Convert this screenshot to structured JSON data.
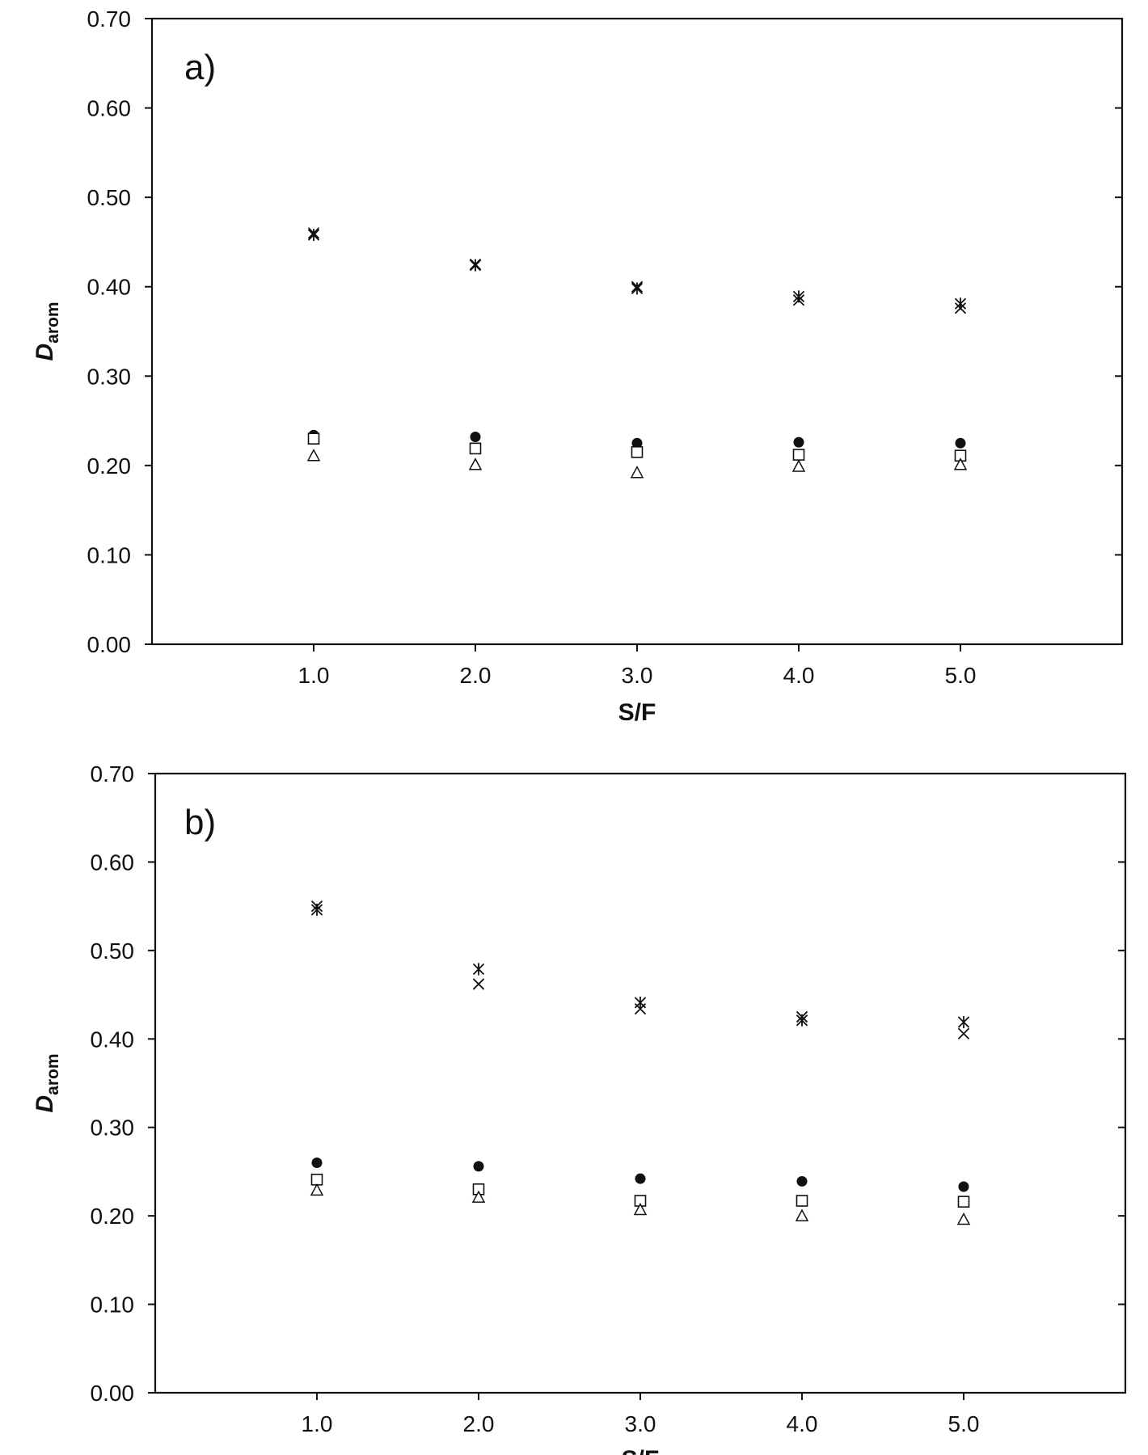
{
  "chart_data": [
    {
      "type": "scatter",
      "panel_label": "a)",
      "title": "",
      "xlabel": "S/F",
      "ylabel": {
        "main": "D",
        "sub": "arom"
      },
      "x": [
        1.0,
        2.0,
        3.0,
        4.0,
        5.0
      ],
      "x_tick_labels": [
        "1.0",
        "2.0",
        "3.0",
        "4.0",
        "5.0"
      ],
      "xlim": [
        0.0,
        6.0
      ],
      "ylim": [
        0.0,
        0.7
      ],
      "y_ticks": [
        0.0,
        0.1,
        0.2,
        0.3,
        0.4,
        0.5,
        0.6,
        0.7
      ],
      "y_tick_labels": [
        "0.00",
        "0.10",
        "0.20",
        "0.30",
        "0.40",
        "0.50",
        "0.60",
        "0.70"
      ],
      "grid": false,
      "legend": "none",
      "series": [
        {
          "marker": "x",
          "color": "#111111",
          "values": [
            0.46,
            0.425,
            0.4,
            0.385,
            0.376
          ]
        },
        {
          "marker": "asterisk",
          "color": "#111111",
          "values": [
            0.458,
            0.424,
            0.398,
            0.389,
            0.381
          ]
        },
        {
          "marker": "circle-filled",
          "color": "#111111",
          "values": [
            0.234,
            0.232,
            0.225,
            0.226,
            0.225
          ]
        },
        {
          "marker": "square-open",
          "color": "#111111",
          "values": [
            0.23,
            0.219,
            0.215,
            0.212,
            0.211
          ]
        },
        {
          "marker": "triangle-open",
          "color": "#111111",
          "values": [
            0.211,
            0.201,
            0.192,
            0.199,
            0.201
          ]
        }
      ]
    },
    {
      "type": "scatter",
      "panel_label": "b)",
      "title": "",
      "xlabel": "S/F",
      "ylabel": {
        "main": "D",
        "sub": "arom"
      },
      "x": [
        1.0,
        2.0,
        3.0,
        4.0,
        5.0
      ],
      "x_tick_labels": [
        "1.0",
        "2.0",
        "3.0",
        "4.0",
        "5.0"
      ],
      "xlim": [
        0.0,
        6.0
      ],
      "ylim": [
        0.0,
        0.7
      ],
      "y_ticks": [
        0.0,
        0.1,
        0.2,
        0.3,
        0.4,
        0.5,
        0.6,
        0.7
      ],
      "y_tick_labels": [
        "0.00",
        "0.10",
        "0.20",
        "0.30",
        "0.40",
        "0.50",
        "0.60",
        "0.70"
      ],
      "grid": false,
      "legend": "none",
      "series": [
        {
          "marker": "x",
          "color": "#111111",
          "values": [
            0.55,
            0.462,
            0.434,
            0.425,
            0.406
          ]
        },
        {
          "marker": "asterisk",
          "color": "#111111",
          "values": [
            0.546,
            0.479,
            0.441,
            0.421,
            0.419
          ]
        },
        {
          "marker": "circle-filled",
          "color": "#111111",
          "values": [
            0.26,
            0.256,
            0.242,
            0.239,
            0.233
          ]
        },
        {
          "marker": "square-open",
          "color": "#111111",
          "values": [
            0.241,
            0.23,
            0.217,
            0.217,
            0.216
          ]
        },
        {
          "marker": "triangle-open",
          "color": "#111111",
          "values": [
            0.229,
            0.221,
            0.207,
            0.2,
            0.196
          ]
        }
      ]
    }
  ]
}
